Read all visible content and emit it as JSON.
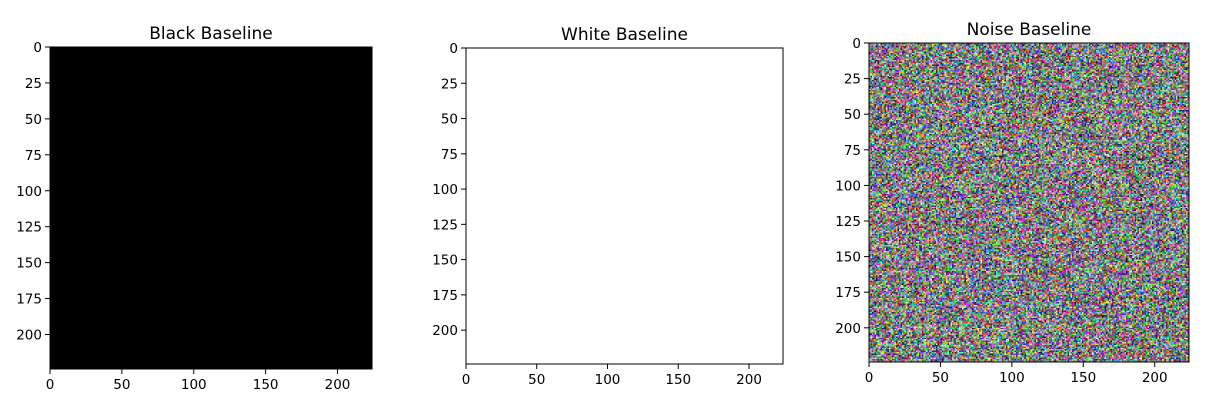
{
  "chart_data": [
    {
      "type": "heatmap",
      "title": "Black Baseline",
      "fill": "solid",
      "color": "#000000",
      "image_size": [
        224,
        224
      ],
      "xlim": [
        0,
        224
      ],
      "ylim": [
        224,
        0
      ],
      "x_ticks": [
        0,
        50,
        100,
        150,
        200
      ],
      "y_ticks": [
        0,
        25,
        50,
        75,
        100,
        125,
        150,
        175,
        200
      ]
    },
    {
      "type": "heatmap",
      "title": "White Baseline",
      "fill": "solid",
      "color": "#ffffff",
      "image_size": [
        224,
        224
      ],
      "xlim": [
        0,
        224
      ],
      "ylim": [
        224,
        0
      ],
      "x_ticks": [
        0,
        50,
        100,
        150,
        200
      ],
      "y_ticks": [
        0,
        25,
        50,
        75,
        100,
        125,
        150,
        175,
        200
      ]
    },
    {
      "type": "heatmap",
      "title": "Noise Baseline",
      "fill": "random-rgb-noise",
      "image_size": [
        224,
        224
      ],
      "xlim": [
        0,
        224
      ],
      "ylim": [
        224,
        0
      ],
      "x_ticks": [
        0,
        50,
        100,
        150,
        200
      ],
      "y_ticks": [
        0,
        25,
        50,
        75,
        100,
        125,
        150,
        175,
        200
      ]
    }
  ]
}
